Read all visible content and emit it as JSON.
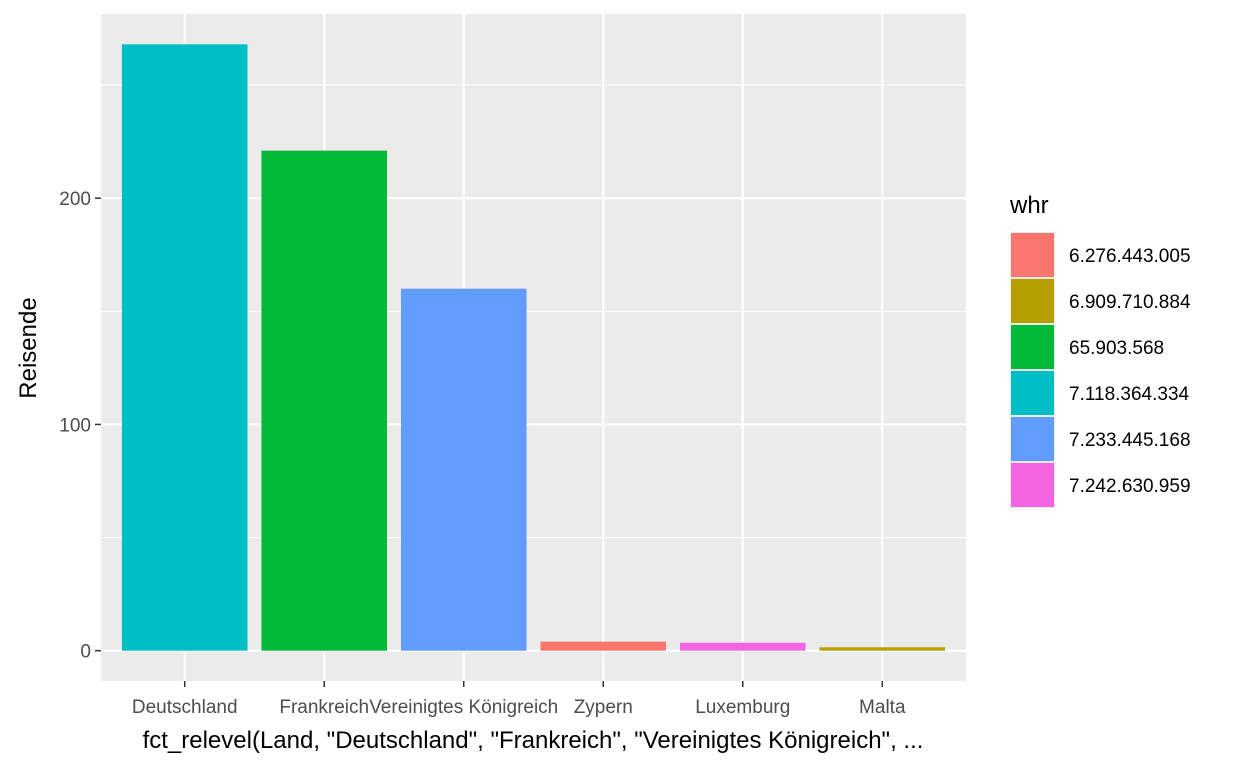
{
  "chart_data": {
    "type": "bar",
    "categories": [
      "Deutschland",
      "Frankreich",
      "Vereinigtes Königreich",
      "Zypern",
      "Luxemburg",
      "Malta"
    ],
    "values": [
      268,
      221,
      160,
      4,
      3.5,
      1.5
    ],
    "fill_group": [
      "7.118.364.334",
      "65.903.568",
      "7.233.445.168",
      "6.276.443.005",
      "7.242.630.959",
      "6.909.710.884"
    ],
    "xlabel": "fct_relevel(Land, \"Deutschland\", \"Frankreich\", \"Vereinigtes Königreich\", ...",
    "ylabel": "Reisende",
    "yticks": [
      0,
      100,
      200
    ],
    "ylim": [
      -13.4,
      281.4
    ],
    "grid": true,
    "legend": {
      "title": "whr",
      "position": "right",
      "entries": [
        {
          "label": "6.276.443.005",
          "color": "#F8766D"
        },
        {
          "label": "6.909.710.884",
          "color": "#B79F00"
        },
        {
          "label": "65.903.568",
          "color": "#00BA38"
        },
        {
          "label": "7.118.364.334",
          "color": "#00BFC4"
        },
        {
          "label": "7.233.445.168",
          "color": "#619CFF"
        },
        {
          "label": "7.242.630.959",
          "color": "#F564E3"
        }
      ]
    }
  },
  "panel_background": "#EBEBEB",
  "grid_color": "#FFFFFF"
}
